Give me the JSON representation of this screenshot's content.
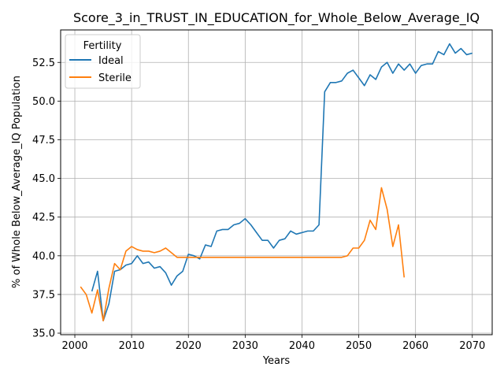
{
  "chart_data": {
    "type": "line",
    "title": "Score_3_in_TRUST_IN_EDUCATION_for_Whole_Below_Average_IQ",
    "xlabel": "Years",
    "ylabel": "% of Whole Below_Average_IQ Population",
    "xlim": [
      1997.5,
      2073.5
    ],
    "ylim": [
      34.9,
      54.6
    ],
    "xticks": [
      2000,
      2010,
      2020,
      2030,
      2040,
      2050,
      2060,
      2070
    ],
    "yticks": [
      35.0,
      37.5,
      40.0,
      42.5,
      45.0,
      47.5,
      50.0,
      52.5
    ],
    "grid": true,
    "legend": {
      "title": "Fertility",
      "position": "top-left"
    },
    "series": [
      {
        "name": "Ideal",
        "color": "#1f77b4",
        "x": [
          2003,
          2004,
          2005,
          2006,
          2007,
          2008,
          2009,
          2010,
          2011,
          2012,
          2013,
          2014,
          2015,
          2016,
          2017,
          2018,
          2019,
          2020,
          2021,
          2022,
          2023,
          2024,
          2025,
          2026,
          2027,
          2028,
          2029,
          2030,
          2031,
          2032,
          2033,
          2034,
          2035,
          2036,
          2037,
          2038,
          2039,
          2040,
          2041,
          2042,
          2043,
          2044,
          2045,
          2046,
          2047,
          2048,
          2049,
          2050,
          2051,
          2052,
          2053,
          2054,
          2055,
          2056,
          2057,
          2058,
          2059,
          2060,
          2061,
          2062,
          2063,
          2064,
          2065,
          2066,
          2067,
          2068,
          2069,
          2070
        ],
        "values": [
          37.7,
          39.0,
          35.8,
          36.9,
          39.0,
          39.1,
          39.4,
          39.5,
          40.0,
          39.5,
          39.6,
          39.2,
          39.3,
          38.9,
          38.1,
          38.7,
          39.0,
          40.1,
          40.0,
          39.8,
          40.7,
          40.6,
          41.6,
          41.7,
          41.7,
          42.0,
          42.1,
          42.4,
          42.0,
          41.5,
          41.0,
          41.0,
          40.5,
          41.0,
          41.1,
          41.6,
          41.4,
          41.5,
          41.6,
          41.6,
          42.0,
          50.6,
          51.2,
          51.2,
          51.3,
          51.8,
          52.0,
          51.5,
          51.0,
          51.7,
          51.4,
          52.2,
          52.5,
          51.8,
          52.4,
          52.0,
          52.4,
          51.8,
          52.3,
          52.4,
          52.4,
          53.2,
          53.0,
          53.7,
          53.1,
          53.4,
          53.0,
          53.1
        ]
      },
      {
        "name": "Sterile",
        "color": "#ff7f0e",
        "x": [
          2001,
          2002,
          2003,
          2004,
          2005,
          2006,
          2007,
          2008,
          2009,
          2010,
          2011,
          2012,
          2013,
          2014,
          2015,
          2016,
          2017,
          2018,
          2019,
          2020,
          2021,
          2022,
          2023,
          2024,
          2025,
          2026,
          2027,
          2028,
          2029,
          2030,
          2031,
          2032,
          2033,
          2034,
          2035,
          2036,
          2037,
          2038,
          2039,
          2040,
          2041,
          2042,
          2043,
          2044,
          2045,
          2046,
          2047,
          2048,
          2049,
          2050,
          2051,
          2052,
          2053,
          2054,
          2055,
          2056,
          2057,
          2058
        ],
        "values": [
          38.0,
          37.5,
          36.3,
          37.8,
          35.8,
          37.9,
          39.5,
          39.1,
          40.3,
          40.6,
          40.4,
          40.3,
          40.3,
          40.2,
          40.3,
          40.5,
          40.2,
          39.9,
          39.9,
          39.9,
          39.9,
          39.9,
          39.9,
          39.9,
          39.9,
          39.9,
          39.9,
          39.9,
          39.9,
          39.9,
          39.9,
          39.9,
          39.9,
          39.9,
          39.9,
          39.9,
          39.9,
          39.9,
          39.9,
          39.9,
          39.9,
          39.9,
          39.9,
          39.9,
          39.9,
          39.9,
          39.9,
          40.0,
          40.5,
          40.5,
          41.0,
          42.3,
          41.7,
          44.4,
          43.0,
          40.6,
          42.0,
          38.6
        ]
      }
    ]
  }
}
